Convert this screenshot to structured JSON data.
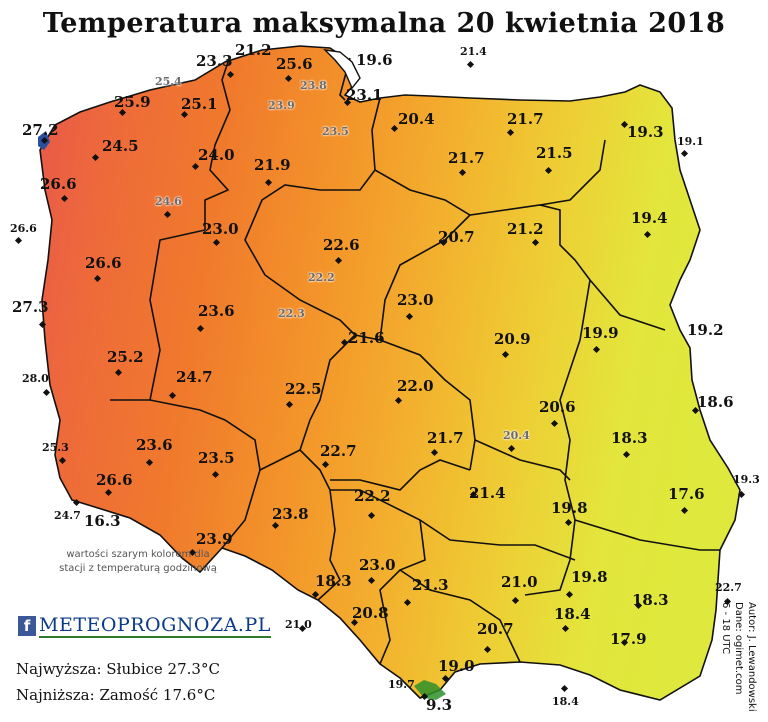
{
  "title": "Temperatura maksymalna 20 kwietnia 2018",
  "colors": {
    "hottest": "#e8584a",
    "hot": "#f07a2c",
    "warm": "#f3a02a",
    "mild": "#f0c231",
    "cool": "#e3e63c",
    "border": "#111111",
    "hourly_station_text": "#6b6b6b"
  },
  "legend_note": "wartości szarym kolorem dla stacji z temperaturą godzinową",
  "brand": {
    "icon": "facebook-icon",
    "name": "METEOPROGNOZA.PL"
  },
  "stats": {
    "highest": "Najwyższa: Słubice 27.3°C",
    "lowest": "Najniższa: Zamość 17.6°C"
  },
  "credits": {
    "author": "Autor: J. Lewandowski",
    "data": "Dane: ogimet.com",
    "period": "6 - 18 UTC"
  },
  "stations": [
    {
      "value": "23.3"
    },
    {
      "value": "21.2"
    },
    {
      "value": "25.6"
    },
    {
      "value": "19.6"
    },
    {
      "value": "21.4"
    },
    {
      "value": "25.4"
    },
    {
      "value": "23.8"
    },
    {
      "value": "25.9"
    },
    {
      "value": "25.1"
    },
    {
      "value": "23.9"
    },
    {
      "value": "23.1"
    },
    {
      "value": "23.5"
    },
    {
      "value": "20.4"
    },
    {
      "value": "21.7"
    },
    {
      "value": "19.3"
    },
    {
      "value": "19.1"
    },
    {
      "value": "27.2"
    },
    {
      "value": "24.5"
    },
    {
      "value": "24.0"
    },
    {
      "value": "21.9"
    },
    {
      "value": "21.7"
    },
    {
      "value": "21.5"
    },
    {
      "value": "26.6"
    },
    {
      "value": "24.6"
    },
    {
      "value": "26.6"
    },
    {
      "value": "23.0"
    },
    {
      "value": "22.6"
    },
    {
      "value": "20.7"
    },
    {
      "value": "21.2"
    },
    {
      "value": "19.4"
    },
    {
      "value": "26.6"
    },
    {
      "value": "22.2"
    },
    {
      "value": "27.3"
    },
    {
      "value": "23.6"
    },
    {
      "value": "22.3"
    },
    {
      "value": "23.0"
    },
    {
      "value": "21.6"
    },
    {
      "value": "20.9"
    },
    {
      "value": "19.9"
    },
    {
      "value": "19.2"
    },
    {
      "value": "25.2"
    },
    {
      "value": "28.0"
    },
    {
      "value": "24.7"
    },
    {
      "value": "22.5"
    },
    {
      "value": "22.0"
    },
    {
      "value": "18.6"
    },
    {
      "value": "20.6"
    },
    {
      "value": "25.3"
    },
    {
      "value": "23.6"
    },
    {
      "value": "23.5"
    },
    {
      "value": "22.7"
    },
    {
      "value": "21.7"
    },
    {
      "value": "20.4"
    },
    {
      "value": "18.3"
    },
    {
      "value": "19.3"
    },
    {
      "value": "26.6"
    },
    {
      "value": "24.7"
    },
    {
      "value": "16.3"
    },
    {
      "value": "22.2"
    },
    {
      "value": "21.4"
    },
    {
      "value": "17.6"
    },
    {
      "value": "23.8"
    },
    {
      "value": "19.8"
    },
    {
      "value": "23.9"
    },
    {
      "value": "23.0"
    },
    {
      "value": "18.3"
    },
    {
      "value": "21.3"
    },
    {
      "value": "21.0"
    },
    {
      "value": "19.8"
    },
    {
      "value": "22.7"
    },
    {
      "value": "18.3"
    },
    {
      "value": "20.8"
    },
    {
      "value": "21.0"
    },
    {
      "value": "18.4"
    },
    {
      "value": "20.7"
    },
    {
      "value": "17.9"
    },
    {
      "value": "19.0"
    },
    {
      "value": "19.7"
    },
    {
      "value": "18.4"
    },
    {
      "value": "9.3"
    }
  ]
}
